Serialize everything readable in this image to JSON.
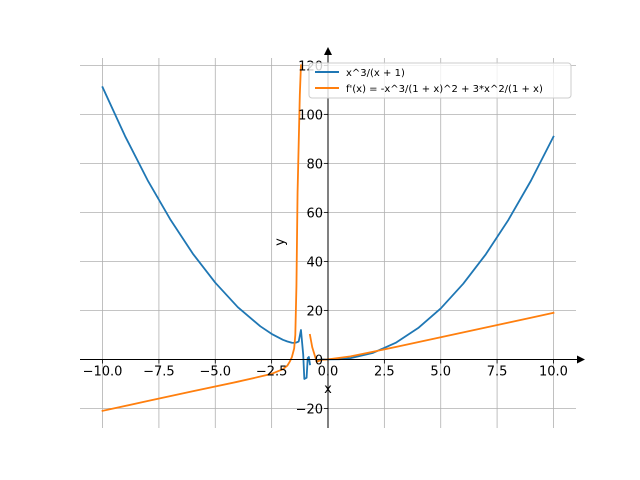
{
  "chart_data": {
    "type": "line",
    "title": "",
    "xlabel": "x",
    "ylabel": "y",
    "xlim": [
      -11.0,
      11.0
    ],
    "ylim": [
      -28,
      123
    ],
    "grid": true,
    "legend_placement": "top-right",
    "x_ticks": [
      {
        "value": -10.0,
        "label": "−10.0"
      },
      {
        "value": -7.5,
        "label": "−7.5"
      },
      {
        "value": -5.0,
        "label": "−5.0"
      },
      {
        "value": -2.5,
        "label": "−2.5"
      },
      {
        "value": 0.0,
        "label": "0.0"
      },
      {
        "value": 2.5,
        "label": "2.5"
      },
      {
        "value": 5.0,
        "label": "5.0"
      },
      {
        "value": 7.5,
        "label": "7.5"
      },
      {
        "value": 10.0,
        "label": "10.0"
      }
    ],
    "y_ticks": [
      {
        "value": -20,
        "label": "−20"
      },
      {
        "value": 0,
        "label": "0"
      },
      {
        "value": 20,
        "label": "20"
      },
      {
        "value": 40,
        "label": "40"
      },
      {
        "value": 60,
        "label": "60"
      },
      {
        "value": 80,
        "label": "80"
      },
      {
        "value": 100,
        "label": "100"
      },
      {
        "value": 120,
        "label": "120"
      }
    ],
    "series": [
      {
        "name": "x^3/(x + 1)",
        "color": "#1f77b4",
        "segments": [
          {
            "x": [
              -10.0,
              -9.0,
              -8.0,
              -7.0,
              -6.0,
              -5.0,
              -4.0,
              -3.0,
              -2.5,
              -2.0,
              -1.8,
              -1.6,
              -1.5,
              -1.4,
              -1.3,
              -1.2,
              -1.1,
              -1.05,
              -0.95,
              -0.9,
              -0.85,
              -0.8
            ],
            "y": [
              111.1,
              91.1,
              73.1,
              57.2,
              43.2,
              31.3,
              21.3,
              13.5,
              10.4,
              8.0,
              7.3,
              6.8,
              6.75,
              6.9,
              7.3,
              12.0,
              2.0,
              -8.0,
              -7.5,
              0.5,
              1.0,
              -2.0
            ]
          },
          {
            "x": [
              -0.5,
              -0.25,
              0.0,
              0.5,
              1.0,
              2.0,
              3.0,
              4.0,
              5.0,
              6.0,
              7.0,
              8.0,
              9.0,
              10.0
            ],
            "y": [
              -0.25,
              -0.02,
              0.0,
              0.08,
              0.5,
              2.67,
              6.75,
              12.8,
              20.8,
              30.9,
              42.9,
              56.9,
              72.9,
              90.9
            ]
          }
        ]
      },
      {
        "name": "f'(x) = -x^3/(1 + x)^2 + 3*x^2/(1 + x)",
        "color": "#ff7f0e",
        "segments": [
          {
            "x": [
              -10.0,
              -8.0,
              -6.0,
              -4.0,
              -3.0,
              -2.5,
              -2.0,
              -1.8,
              -1.7,
              -1.6,
              -1.5,
              -1.45,
              -1.4,
              -1.35,
              -1.3,
              -1.25,
              -1.2
            ],
            "y": [
              -21.0,
              -17.0,
              -13.0,
              -9.1,
              -7.0,
              -5.9,
              -4.0,
              -2.5,
              -1.0,
              1.0,
              4.5,
              10.0,
              30.0,
              68.0,
              88.0,
              108.0,
              120.0
            ]
          },
          {
            "x": [
              -0.8,
              -0.7,
              -0.6,
              -0.5,
              -0.3,
              0.0,
              1.0,
              2.0,
              3.0,
              4.0,
              5.0,
              6.0,
              7.0,
              8.0,
              9.0,
              10.0
            ],
            "y": [
              10.0,
              5.0,
              2.0,
              -1.0,
              -0.2,
              0.0,
              1.25,
              3.11,
              5.06,
              7.04,
              9.03,
              11.02,
              13.02,
              15.01,
              17.01,
              19.0
            ]
          }
        ]
      }
    ]
  }
}
